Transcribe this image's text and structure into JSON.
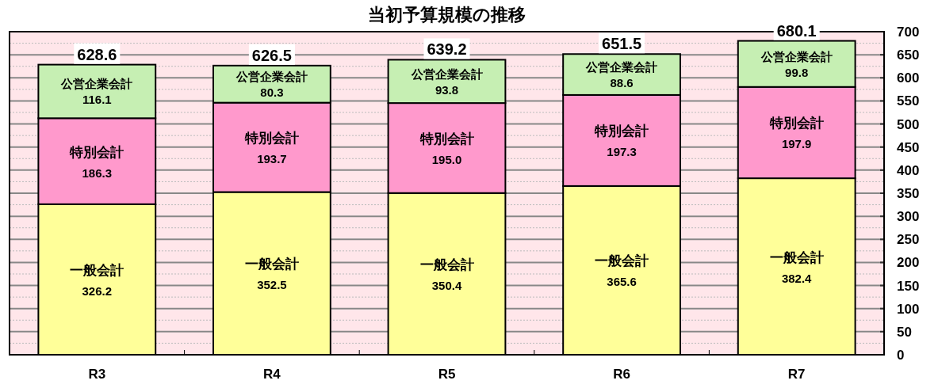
{
  "chart_data": {
    "type": "bar",
    "title": "当初予算規模の推移",
    "stacked": true,
    "categories": [
      "R3",
      "R4",
      "R5",
      "R6",
      "R7"
    ],
    "series": [
      {
        "name": "一般会計",
        "color": "#ffff99",
        "values": [
          326.2,
          352.5,
          350.4,
          365.6,
          382.4
        ],
        "value_labels": [
          "326.2",
          "352.5",
          "350.4",
          "365.6",
          "382.4"
        ]
      },
      {
        "name": "特別会計",
        "color": "#ff99cc",
        "values": [
          186.3,
          193.7,
          195.0,
          197.3,
          197.9
        ],
        "value_labels": [
          "186.3",
          "193.7",
          "195.0",
          "197.3",
          "197.9"
        ]
      },
      {
        "name": "公営企業会計",
        "color": "#c6efb3",
        "values": [
          116.1,
          80.3,
          93.8,
          88.6,
          99.8
        ],
        "value_labels": [
          "116.1",
          "80.3",
          "93.8",
          "88.6",
          "99.8"
        ]
      }
    ],
    "totals": [
      "628.6",
      "626.5",
      "639.2",
      "651.5",
      "680.1"
    ],
    "ylim": [
      0,
      700
    ],
    "yticks": [
      0,
      50,
      100,
      150,
      200,
      250,
      300,
      350,
      400,
      450,
      500,
      550,
      600,
      650,
      700
    ],
    "grid": "y"
  }
}
